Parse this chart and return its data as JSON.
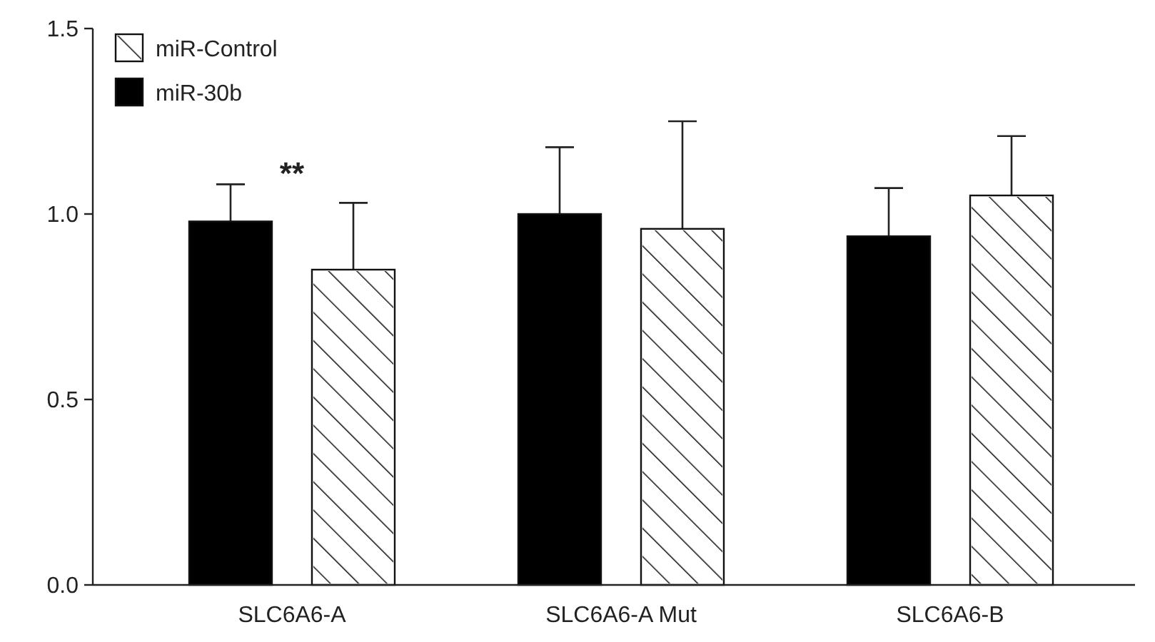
{
  "chart_data": {
    "type": "bar",
    "categories": [
      "SLC6A6-A",
      "SLC6A6-A Mut",
      "SLC6A6-B"
    ],
    "series": [
      {
        "name": "miR-30b",
        "color": "#000000",
        "values": [
          0.98,
          1.0,
          0.94
        ],
        "errors": [
          [
            0.98,
            1.08
          ],
          [
            1.0,
            1.18
          ],
          [
            0.94,
            1.07
          ]
        ]
      },
      {
        "name": "miR-Control",
        "color": "#ffffff",
        "values": [
          0.85,
          0.96,
          1.05
        ],
        "errors": [
          [
            0.85,
            1.03
          ],
          [
            0.96,
            1.25
          ],
          [
            1.05,
            1.21
          ]
        ]
      }
    ],
    "ylim": [
      0,
      1.5
    ],
    "yticks": [
      {
        "value": 0,
        "label": "0.0"
      },
      {
        "value": 0.5,
        "label": "0.5"
      },
      {
        "value": 1,
        "label": "1.0"
      },
      {
        "value": 1.5,
        "label": "1.5"
      }
    ],
    "annotations": [
      "**"
    ],
    "legend": "top left",
    "grid": false
  }
}
